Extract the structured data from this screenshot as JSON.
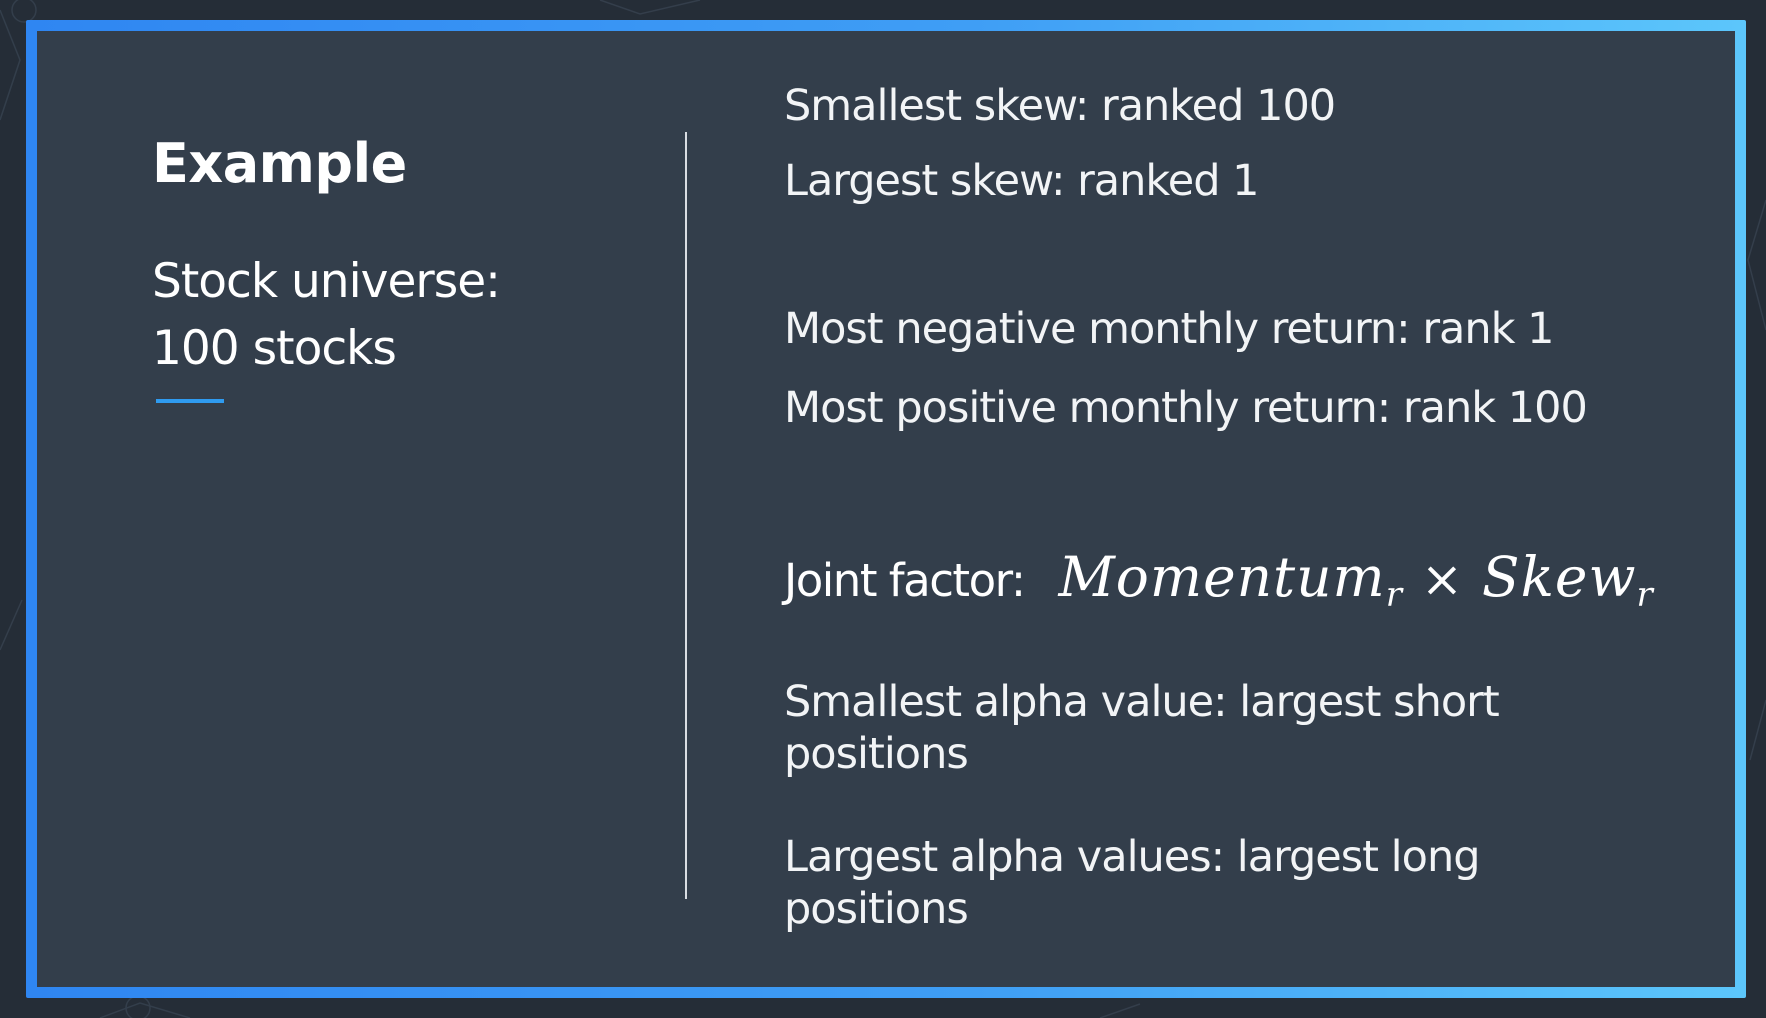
{
  "slide": {
    "title": "Example",
    "subtitle_line1": "Stock universe:",
    "subtitle_line2": "100 stocks"
  },
  "right": {
    "smallest_skew": "Smallest skew: ranked 100",
    "largest_skew": "Largest skew: ranked 1",
    "most_negative": "Most negative monthly return: rank 1",
    "most_positive": "Most positive monthly return: rank 100",
    "joint_factor_label": "Joint factor:",
    "formula": {
      "term1": "Momentum",
      "term1_sub": "r",
      "operator": "×",
      "term2": "Skew",
      "term2_sub": "r"
    },
    "smallest_alpha": "Smallest alpha value: largest short positions",
    "largest_alpha": "Largest alpha values: largest long positions"
  },
  "colors": {
    "panel_background": "#333e4b",
    "frame_gradient_start": "#2f86f2",
    "frame_gradient_end": "#5cc6fb",
    "accent": "#2f9bf0",
    "text": "#ffffff"
  }
}
